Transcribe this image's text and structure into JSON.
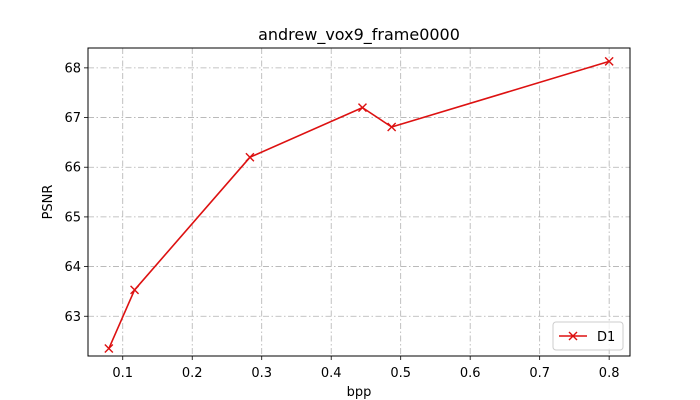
{
  "chart_data": {
    "type": "line",
    "title": "andrew_vox9_frame0000",
    "xlabel": "bpp",
    "ylabel": "PSNR",
    "xlim": [
      0.05,
      0.83
    ],
    "ylim": [
      62.2,
      68.4
    ],
    "xticks": [
      0.1,
      0.2,
      0.3,
      0.4,
      0.5,
      0.6,
      0.7,
      0.8
    ],
    "xtick_labels": [
      "0.1",
      "0.2",
      "0.3",
      "0.4",
      "0.5",
      "0.6",
      "0.7",
      "0.8"
    ],
    "yticks": [
      63,
      64,
      65,
      66,
      67,
      68
    ],
    "ytick_labels": [
      "63",
      "64",
      "65",
      "66",
      "67",
      "68"
    ],
    "grid": true,
    "legend_position": "lower-right",
    "series": [
      {
        "name": "D1",
        "color": "#dd1111",
        "marker": "x",
        "x": [
          0.08,
          0.117,
          0.283,
          0.445,
          0.487,
          0.8
        ],
        "y": [
          62.35,
          63.53,
          66.2,
          67.2,
          66.81,
          68.13
        ]
      }
    ]
  }
}
